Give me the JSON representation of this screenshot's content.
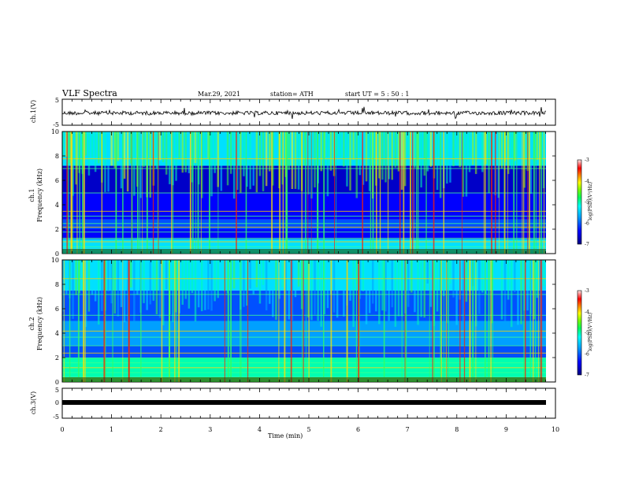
{
  "header": {
    "title": "VLF Spectra",
    "date": "Mar.29, 2021",
    "station": "station= ATH",
    "start": "start  UT =   5 : 50 : 1"
  },
  "chart_data": [
    {
      "type": "line",
      "panel": "ch1-waveform",
      "ylabel": "ch.1(V)",
      "ylim": [
        -5,
        5
      ],
      "yticks": [
        "5",
        "-5"
      ],
      "xlim": [
        0,
        9.83
      ],
      "description_of_signal": "noisy waveform centered near 0 V, amplitude about +/-1 V with sporadic spikes"
    },
    {
      "type": "heatmap",
      "panel": "ch1-spectrogram",
      "ylabel": "ch.1\nFrequency (kHz)",
      "ylim": [
        0,
        10
      ],
      "yticks": [
        "0",
        "2",
        "4",
        "6",
        "8",
        "10"
      ],
      "colorbar": {
        "label": "log(PSD)(V²/Hz)",
        "range": [
          -7,
          -3
        ],
        "ticks": [
          "-3",
          "-4",
          "-5",
          "-6",
          "-7"
        ]
      }
    },
    {
      "type": "heatmap",
      "panel": "ch2-spectrogram",
      "ylabel": "ch.2\nFrequency (kHz)",
      "ylim": [
        0,
        10
      ],
      "yticks": [
        "0",
        "2",
        "4",
        "6",
        "8",
        "10"
      ],
      "colorbar": {
        "label": "log(PSD)(V²/Hz)",
        "range": [
          -7,
          -3
        ],
        "ticks": [
          "-3",
          "-4",
          "-5",
          "-6",
          "-7"
        ]
      }
    },
    {
      "type": "line",
      "panel": "ch3-waveform",
      "ylabel": "ch.3(V)",
      "ylim": [
        -5,
        5
      ],
      "yticks": [
        "5",
        "0",
        "-5"
      ],
      "description_of_signal": "flat thick line near 0 V"
    }
  ],
  "x_axis": {
    "label": "Time  (min)",
    "range": [
      0,
      10
    ],
    "ticks": [
      "0",
      "1",
      "2",
      "3",
      "4",
      "5",
      "6",
      "7",
      "8",
      "9",
      "10"
    ]
  },
  "colors": {
    "colormap": [
      "#00008b",
      "#0000ff",
      "#00a0ff",
      "#00ffff",
      "#00ff80",
      "#80ff00",
      "#ffff00",
      "#ff8000",
      "#ff0000",
      "#ffffff"
    ]
  }
}
